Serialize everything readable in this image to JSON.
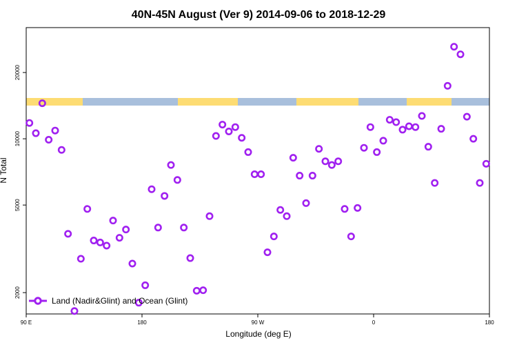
{
  "chart_data": {
    "type": "scatter",
    "title": "40N-45N August (Ver 9)   2014-09-06 to 2018-12-29",
    "xlabel": "Longitude (deg E)",
    "ylabel": "N Total",
    "xlim": [
      90,
      450
    ],
    "y_scale": "log",
    "ylim": [
      1600,
      32000
    ],
    "x_ticks": [
      {
        "value": 90,
        "label": "90 E"
      },
      {
        "value": 180,
        "label": "180"
      },
      {
        "value": 270,
        "label": "90 W"
      },
      {
        "value": 360,
        "label": "0"
      },
      {
        "value": 450,
        "label": "180"
      }
    ],
    "y_ticks": [
      {
        "value": 2000,
        "label": "2000"
      },
      {
        "value": 5000,
        "label": "5000"
      },
      {
        "value": 10000,
        "label": "10000"
      },
      {
        "value": 20000,
        "label": "20000"
      }
    ],
    "grid": false,
    "legend": {
      "placement": "bottom-left",
      "entries": [
        {
          "label": "Land (Nadir&Glint) and Ocean (Glint)",
          "color": "#a020f0"
        }
      ]
    },
    "series": [
      {
        "name": "Land (Nadir&Glint) and Ocean (Glint)",
        "color": "#a020f0",
        "marker": "open-circle",
        "points": [
          [
            92.5,
            11800
          ],
          [
            97.5,
            10600
          ],
          [
            102.5,
            14500
          ],
          [
            107.5,
            9900
          ],
          [
            112.5,
            10900
          ],
          [
            117.5,
            8900
          ],
          [
            122.5,
            3700
          ],
          [
            127.5,
            1650
          ],
          [
            132.5,
            2850
          ],
          [
            137.5,
            4800
          ],
          [
            142.5,
            3450
          ],
          [
            147.5,
            3380
          ],
          [
            152.5,
            3270
          ],
          [
            157.5,
            4250
          ],
          [
            162.5,
            3550
          ],
          [
            167.5,
            3870
          ],
          [
            172.5,
            2710
          ],
          [
            177.5,
            1800
          ],
          [
            182.5,
            2160
          ],
          [
            187.5,
            5900
          ],
          [
            192.5,
            3950
          ],
          [
            197.5,
            5500
          ],
          [
            202.5,
            7600
          ],
          [
            207.5,
            6500
          ],
          [
            212.5,
            3950
          ],
          [
            217.5,
            2870
          ],
          [
            222.5,
            2040
          ],
          [
            227.5,
            2050
          ],
          [
            232.5,
            4450
          ],
          [
            237.5,
            10300
          ],
          [
            242.5,
            11600
          ],
          [
            247.5,
            10800
          ],
          [
            252.5,
            11300
          ],
          [
            257.5,
            10100
          ],
          [
            262.5,
            8700
          ],
          [
            267.5,
            6900
          ],
          [
            272.5,
            6900
          ],
          [
            277.5,
            3050
          ],
          [
            282.5,
            3600
          ],
          [
            287.5,
            4750
          ],
          [
            292.5,
            4450
          ],
          [
            297.5,
            8200
          ],
          [
            302.5,
            6800
          ],
          [
            307.5,
            5100
          ],
          [
            312.5,
            6800
          ],
          [
            317.5,
            9000
          ],
          [
            322.5,
            7900
          ],
          [
            327.5,
            7600
          ],
          [
            332.5,
            7900
          ],
          [
            337.5,
            4800
          ],
          [
            342.5,
            3600
          ],
          [
            347.5,
            4850
          ],
          [
            352.5,
            9100
          ],
          [
            357.5,
            11300
          ],
          [
            362.5,
            8700
          ],
          [
            367.5,
            9800
          ],
          [
            372.5,
            12200
          ],
          [
            377.5,
            11900
          ],
          [
            382.5,
            11000
          ],
          [
            387.5,
            11400
          ],
          [
            392.5,
            11300
          ],
          [
            397.5,
            12700
          ],
          [
            402.5,
            9200
          ],
          [
            407.5,
            6300
          ],
          [
            412.5,
            11100
          ],
          [
            417.5,
            17400
          ],
          [
            422.5,
            26200
          ],
          [
            427.5,
            24200
          ],
          [
            432.5,
            12600
          ],
          [
            437.5,
            10000
          ],
          [
            442.5,
            6300
          ],
          [
            447.5,
            7700
          ]
        ]
      }
    ]
  }
}
